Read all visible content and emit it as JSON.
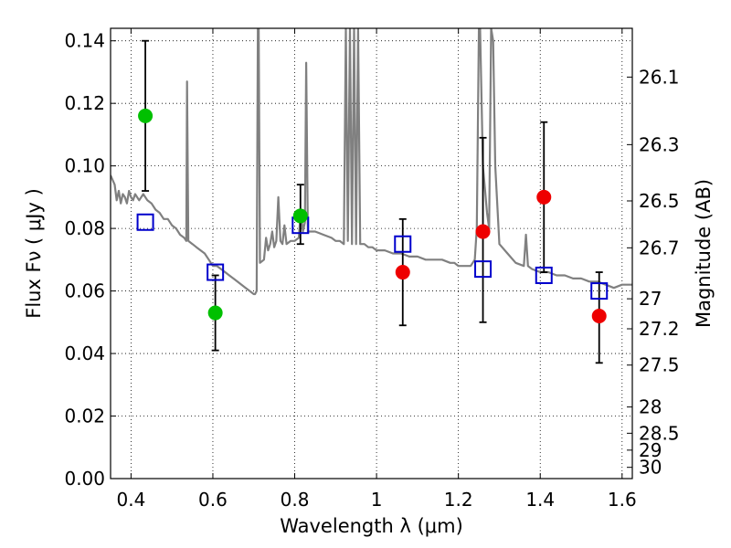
{
  "chart_data": {
    "type": "scatter",
    "xlabel": "Wavelength  λ (μm)",
    "ylabel": "Flux  Fν  ( μJy )",
    "y2label": "Magnitude (AB)",
    "xlim": [
      0.35,
      1.625
    ],
    "ylim": [
      0.0,
      0.144
    ],
    "xticks": [
      0.4,
      0.6,
      0.8,
      1.0,
      1.2,
      1.4,
      1.6
    ],
    "xtick_labels": [
      "0.4",
      "0.6",
      "0.8",
      "1",
      "1.2",
      "1.4",
      "1.6"
    ],
    "yticks": [
      0.0,
      0.02,
      0.04,
      0.06,
      0.08,
      0.1,
      0.12,
      0.14
    ],
    "ytick_labels": [
      "0.00",
      "0.02",
      "0.04",
      "0.06",
      "0.08",
      "0.10",
      "0.12",
      "0.14"
    ],
    "y2ticks": [
      {
        "label": "26.1",
        "flux": 0.1284
      },
      {
        "label": "26.3",
        "flux": 0.1068
      },
      {
        "label": "26.5",
        "flux": 0.0888
      },
      {
        "label": "26.7",
        "flux": 0.0738
      },
      {
        "label": "27",
        "flux": 0.0575
      },
      {
        "label": "27.2",
        "flux": 0.0479
      },
      {
        "label": "27.5",
        "flux": 0.0363
      },
      {
        "label": "28",
        "flux": 0.0229
      },
      {
        "label": "28.5",
        "flux": 0.0145
      },
      {
        "label": "29",
        "flux": 0.0091
      },
      {
        "label": "30",
        "flux": 0.0036
      }
    ],
    "grid": true,
    "series": [
      {
        "kind": "line",
        "color": "#808080",
        "points": [
          [
            0.35,
            0.097
          ],
          [
            0.36,
            0.094
          ],
          [
            0.365,
            0.089
          ],
          [
            0.37,
            0.092
          ],
          [
            0.375,
            0.088
          ],
          [
            0.38,
            0.091
          ],
          [
            0.385,
            0.09
          ],
          [
            0.39,
            0.088
          ],
          [
            0.395,
            0.092
          ],
          [
            0.4,
            0.09
          ],
          [
            0.405,
            0.089
          ],
          [
            0.41,
            0.091
          ],
          [
            0.42,
            0.089
          ],
          [
            0.43,
            0.091
          ],
          [
            0.44,
            0.089
          ],
          [
            0.45,
            0.088
          ],
          [
            0.46,
            0.086
          ],
          [
            0.47,
            0.085
          ],
          [
            0.48,
            0.083
          ],
          [
            0.49,
            0.083
          ],
          [
            0.5,
            0.081
          ],
          [
            0.51,
            0.08
          ],
          [
            0.52,
            0.078
          ],
          [
            0.53,
            0.077
          ],
          [
            0.535,
            0.076
          ],
          [
            0.537,
            0.127
          ],
          [
            0.54,
            0.076
          ],
          [
            0.55,
            0.075
          ],
          [
            0.56,
            0.074
          ],
          [
            0.57,
            0.073
          ],
          [
            0.58,
            0.072
          ],
          [
            0.59,
            0.07
          ],
          [
            0.6,
            0.068
          ],
          [
            0.61,
            0.068
          ],
          [
            0.62,
            0.067
          ],
          [
            0.63,
            0.066
          ],
          [
            0.64,
            0.065
          ],
          [
            0.65,
            0.064
          ],
          [
            0.66,
            0.063
          ],
          [
            0.67,
            0.062
          ],
          [
            0.68,
            0.061
          ],
          [
            0.69,
            0.06
          ],
          [
            0.7,
            0.059
          ],
          [
            0.703,
            0.059
          ],
          [
            0.707,
            0.06
          ],
          [
            0.71,
            0.144
          ],
          [
            0.712,
            0.144
          ],
          [
            0.715,
            0.069
          ],
          [
            0.725,
            0.07
          ],
          [
            0.73,
            0.077
          ],
          [
            0.735,
            0.073
          ],
          [
            0.74,
            0.075
          ],
          [
            0.745,
            0.079
          ],
          [
            0.75,
            0.074
          ],
          [
            0.755,
            0.076
          ],
          [
            0.76,
            0.09
          ],
          [
            0.765,
            0.076
          ],
          [
            0.77,
            0.075
          ],
          [
            0.775,
            0.081
          ],
          [
            0.78,
            0.075
          ],
          [
            0.79,
            0.076
          ],
          [
            0.8,
            0.076
          ],
          [
            0.81,
            0.077
          ],
          [
            0.815,
            0.086
          ],
          [
            0.82,
            0.079
          ],
          [
            0.825,
            0.082
          ],
          [
            0.828,
            0.133
          ],
          [
            0.832,
            0.079
          ],
          [
            0.85,
            0.079
          ],
          [
            0.87,
            0.078
          ],
          [
            0.89,
            0.077
          ],
          [
            0.9,
            0.076
          ],
          [
            0.91,
            0.076
          ],
          [
            0.92,
            0.075
          ],
          [
            0.925,
            0.144
          ],
          [
            0.93,
            0.076
          ],
          [
            0.935,
            0.144
          ],
          [
            0.94,
            0.075
          ],
          [
            0.945,
            0.144
          ],
          [
            0.95,
            0.075
          ],
          [
            0.955,
            0.144
          ],
          [
            0.96,
            0.075
          ],
          [
            0.97,
            0.075
          ],
          [
            0.98,
            0.074
          ],
          [
            0.99,
            0.074
          ],
          [
            1.0,
            0.073
          ],
          [
            1.02,
            0.073
          ],
          [
            1.04,
            0.072
          ],
          [
            1.06,
            0.072
          ],
          [
            1.08,
            0.071
          ],
          [
            1.1,
            0.071
          ],
          [
            1.12,
            0.07
          ],
          [
            1.14,
            0.07
          ],
          [
            1.16,
            0.07
          ],
          [
            1.18,
            0.069
          ],
          [
            1.19,
            0.069
          ],
          [
            1.2,
            0.068
          ],
          [
            1.21,
            0.068
          ],
          [
            1.22,
            0.068
          ],
          [
            1.23,
            0.068
          ],
          [
            1.24,
            0.07
          ],
          [
            1.245,
            0.08
          ],
          [
            1.25,
            0.144
          ],
          [
            1.253,
            0.144
          ],
          [
            1.26,
            0.1
          ],
          [
            1.27,
            0.085
          ],
          [
            1.275,
            0.08
          ],
          [
            1.28,
            0.144
          ],
          [
            1.285,
            0.14
          ],
          [
            1.29,
            0.1
          ],
          [
            1.3,
            0.075
          ],
          [
            1.32,
            0.072
          ],
          [
            1.34,
            0.069
          ],
          [
            1.36,
            0.068
          ],
          [
            1.365,
            0.078
          ],
          [
            1.37,
            0.068
          ],
          [
            1.38,
            0.067
          ],
          [
            1.4,
            0.066
          ],
          [
            1.42,
            0.066
          ],
          [
            1.44,
            0.065
          ],
          [
            1.46,
            0.065
          ],
          [
            1.48,
            0.064
          ],
          [
            1.5,
            0.064
          ],
          [
            1.52,
            0.063
          ],
          [
            1.54,
            0.063
          ],
          [
            1.56,
            0.062
          ],
          [
            1.58,
            0.061
          ],
          [
            1.6,
            0.062
          ],
          [
            1.625,
            0.062
          ]
        ]
      },
      {
        "kind": "errorbar",
        "color": "#000000",
        "points": [
          {
            "x": 0.435,
            "lo": 0.092,
            "hi": 0.14
          },
          {
            "x": 0.606,
            "lo": 0.041,
            "hi": 0.065
          },
          {
            "x": 0.814,
            "lo": 0.075,
            "hi": 0.094
          },
          {
            "x": 1.064,
            "lo": 0.049,
            "hi": 0.083
          },
          {
            "x": 1.26,
            "lo": 0.05,
            "hi": 0.109
          },
          {
            "x": 1.409,
            "lo": 0.066,
            "hi": 0.114
          },
          {
            "x": 1.544,
            "lo": 0.037,
            "hi": 0.066
          }
        ]
      },
      {
        "kind": "square",
        "color": "#0000cc",
        "x": [
          0.435,
          0.606,
          0.814,
          1.064,
          1.26,
          1.409,
          1.544
        ],
        "y": [
          0.082,
          0.066,
          0.081,
          0.075,
          0.067,
          0.065,
          0.06
        ]
      },
      {
        "kind": "circle",
        "color": "#00c000",
        "x": [
          0.435,
          0.606,
          0.814
        ],
        "y": [
          0.116,
          0.053,
          0.084
        ]
      },
      {
        "kind": "circle",
        "color": "#ee0000",
        "x": [
          1.064,
          1.26,
          1.409,
          1.544
        ],
        "y": [
          0.066,
          0.079,
          0.09,
          0.052
        ]
      }
    ]
  }
}
